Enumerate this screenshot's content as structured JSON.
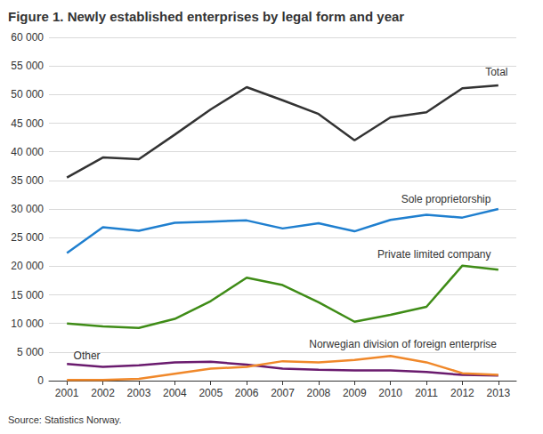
{
  "chart_data": {
    "type": "line",
    "title": "Figure 1. Newly established enterprises by legal form and year",
    "source": "Source: Statistics Norway.",
    "categories": [
      "2001",
      "2002",
      "2003",
      "2004",
      "2005",
      "2006",
      "2007",
      "2008",
      "2009",
      "2010",
      "2011",
      "2012",
      "2013"
    ],
    "series": [
      {
        "name": "Total",
        "color": "#333333",
        "values": [
          35500,
          39000,
          38700,
          43000,
          47400,
          51300,
          49000,
          46600,
          42000,
          46000,
          46900,
          51100,
          51600
        ]
      },
      {
        "name": "Sole proprietorship",
        "color": "#1f7fcf",
        "values": [
          22300,
          26800,
          26200,
          27600,
          27800,
          28000,
          26600,
          27500,
          26100,
          28100,
          29000,
          28500,
          30000
        ]
      },
      {
        "name": "Private limited company",
        "color": "#3f8c17",
        "values": [
          10000,
          9500,
          9200,
          10800,
          13900,
          18000,
          16700,
          13700,
          10300,
          11500,
          12900,
          20100,
          19400
        ]
      },
      {
        "name": "Other",
        "color": "#6a1b6e",
        "values": [
          2900,
          2400,
          2700,
          3200,
          3300,
          2800,
          2100,
          1900,
          1800,
          1800,
          1500,
          1000,
          900
        ]
      },
      {
        "name": "Norwegian division of foreign enterprise",
        "color": "#f0882a",
        "values": [
          100,
          100,
          300,
          1200,
          2100,
          2400,
          3400,
          3200,
          3600,
          4300,
          3200,
          1300,
          1000
        ]
      }
    ],
    "ylim": [
      0,
      60000
    ],
    "yticks": [
      0,
      {
        "value": 5000,
        "label": "5 000"
      },
      {
        "value": 10000,
        "label": "10 000"
      },
      {
        "value": 15000,
        "label": "15 000"
      },
      {
        "value": 20000,
        "label": "20 000"
      },
      {
        "value": 25000,
        "label": "25 000"
      },
      {
        "value": 30000,
        "label": "30 000"
      },
      {
        "value": 35000,
        "label": "35 000"
      },
      {
        "value": 40000,
        "label": "40 000"
      },
      {
        "value": 45000,
        "label": "45 000"
      },
      {
        "value": 50000,
        "label": "50 000"
      },
      {
        "value": 55000,
        "label": "55 000"
      },
      {
        "value": 60000,
        "label": "60 000"
      }
    ],
    "grid": true
  }
}
